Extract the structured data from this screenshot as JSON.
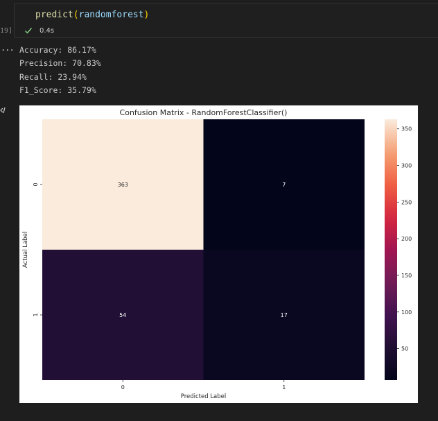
{
  "cell": {
    "code": {
      "fn": "predict",
      "open": "(",
      "arg": "randomforest",
      "close": ")"
    },
    "exec_count": "19]",
    "status": "success",
    "exec_time": "0.4s"
  },
  "output": {
    "prompt_marker": "...",
    "metrics": [
      "Accuracy: 86.17%",
      "Precision: 70.83%",
      "Recall: 23.94%",
      "F1_Score: 35.79%"
    ]
  },
  "icons": {
    "check": "check-icon",
    "output": "code-output-icon"
  },
  "chart_data": {
    "type": "heatmap",
    "title": "Confusion Matrix - RandomForestClassifier()",
    "xlabel": "Predicted Label",
    "ylabel": "Actual Label",
    "x_ticks": [
      "0",
      "1"
    ],
    "y_ticks": [
      "0",
      "1"
    ],
    "matrix": [
      [
        363,
        7
      ],
      [
        54,
        17
      ]
    ],
    "annotations": [
      [
        "363",
        "7"
      ],
      [
        "54",
        "17"
      ]
    ],
    "colormap": "rocket",
    "colorbar": {
      "ticks": [
        50,
        100,
        150,
        200,
        250,
        300,
        350
      ],
      "tick_labels": [
        "50",
        "100",
        "150",
        "200",
        "250",
        "300",
        "350"
      ],
      "range": [
        7,
        363
      ]
    }
  }
}
